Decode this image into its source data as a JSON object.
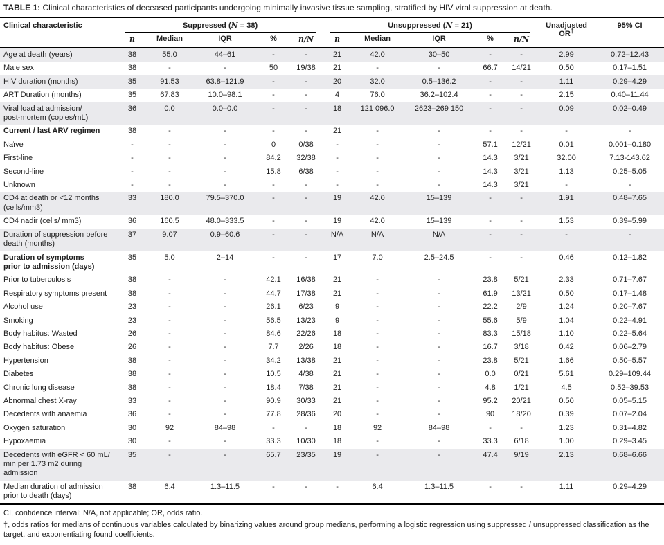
{
  "title": {
    "label": "TABLE 1:",
    "text": " Clinical characteristics of deceased participants undergoing minimally invasive tissue sampling, stratified by HIV viral suppression at death."
  },
  "colors": {
    "row_shade": "#eaeaed",
    "rule": "#000000",
    "text": "#1f1f1f"
  },
  "table": {
    "header": {
      "characteristic": "Clinical characteristic",
      "suppressed": {
        "prefix": "Suppressed (",
        "nvar": "N",
        "suffix": " = 38)"
      },
      "unsuppressed": {
        "prefix": "Unsuppressed (",
        "nvar": "N",
        "suffix": " = 21)"
      },
      "subcols": [
        "n",
        "Median",
        "IQR",
        "%",
        "n/N"
      ],
      "or": {
        "text": "Unadjusted OR",
        "sup": "†"
      },
      "ci": "95% CI"
    },
    "rows": [
      {
        "label": "Age at death (years)",
        "bold": false,
        "shaded": true,
        "cells": [
          "38",
          "55.0",
          "44–61",
          "-",
          "-",
          "21",
          "42.0",
          "30–50",
          "-",
          "-",
          "2.99",
          "0.72–12.43"
        ]
      },
      {
        "label": "Male sex",
        "bold": false,
        "shaded": false,
        "cells": [
          "38",
          "-",
          "-",
          "50",
          "19/38",
          "21",
          "-",
          "-",
          "66.7",
          "14/21",
          "0.50",
          "0.17–1.51"
        ]
      },
      {
        "label": "HIV duration (months)",
        "bold": false,
        "shaded": true,
        "cells": [
          "35",
          "91.53",
          "63.8–121.9",
          "-",
          "-",
          "20",
          "32.0",
          "0.5–136.2",
          "-",
          "-",
          "1.11",
          "0.29–4.29"
        ]
      },
      {
        "label": "ART Duration (months)",
        "bold": false,
        "shaded": false,
        "cells": [
          "35",
          "67.83",
          "10.0–98.1",
          "-",
          "-",
          "4",
          "76.0",
          "36.2–102.4",
          "-",
          "-",
          "2.15",
          "0.40–11.44"
        ]
      },
      {
        "label": "Viral load at admission/\npost-mortem (copies/mL)",
        "bold": false,
        "shaded": true,
        "cells": [
          "36",
          "0.0",
          "0.0–0.0",
          "-",
          "-",
          "18",
          "121 096.0",
          "2623–269 150",
          "-",
          "-",
          "0.09",
          "0.02–0.49"
        ]
      },
      {
        "label": "Current / last ARV regimen",
        "bold": true,
        "shaded": false,
        "cells": [
          "38",
          "-",
          "-",
          "-",
          "-",
          "21",
          "-",
          "-",
          "-",
          "-",
          "-",
          "-"
        ]
      },
      {
        "label": "Naïve",
        "bold": false,
        "shaded": false,
        "cells": [
          "-",
          "-",
          "-",
          "0",
          "0/38",
          "-",
          "-",
          "-",
          "57.1",
          "12/21",
          "0.01",
          "0.001–0.180"
        ]
      },
      {
        "label": "First-line",
        "bold": false,
        "shaded": false,
        "cells": [
          "-",
          "-",
          "-",
          "84.2",
          "32/38",
          "-",
          "-",
          "-",
          "14.3",
          "3/21",
          "32.00",
          "7.13-143.62"
        ]
      },
      {
        "label": "Second-line",
        "bold": false,
        "shaded": false,
        "cells": [
          "-",
          "-",
          "-",
          "15.8",
          "6/38",
          "-",
          "-",
          "-",
          "14.3",
          "3/21",
          "1.13",
          "0.25–5.05"
        ]
      },
      {
        "label": "Unknown",
        "bold": false,
        "shaded": false,
        "cells": [
          "-",
          "-",
          "-",
          "-",
          "-",
          "-",
          "-",
          "-",
          "14.3",
          "3/21",
          "-",
          "-"
        ]
      },
      {
        "label": "CD4 at death or <12 months\n(cells/mm3)",
        "bold": false,
        "shaded": true,
        "cells": [
          "33",
          "180.0",
          "79.5–370.0",
          "-",
          "-",
          "19",
          "42.0",
          "15–139",
          "-",
          "-",
          "1.91",
          "0.48–7.65"
        ]
      },
      {
        "label": "CD4 nadir (cells/ mm3)",
        "bold": false,
        "shaded": false,
        "cells": [
          "36",
          "160.5",
          "48.0–333.5",
          "-",
          "-",
          "19",
          "42.0",
          "15–139",
          "-",
          "-",
          "1.53",
          "0.39–5.99"
        ]
      },
      {
        "label": "Duration of suppression before\ndeath (months)",
        "bold": false,
        "shaded": true,
        "cells": [
          "37",
          "9.07",
          "0.9–60.6",
          "-",
          "-",
          "N/A",
          "N/A",
          "N/A",
          "-",
          "-",
          "-",
          "-"
        ]
      },
      {
        "label": "Duration of symptoms\nprior to admission (days)",
        "bold": true,
        "shaded": false,
        "cells": [
          "35",
          "5.0",
          "2–14",
          "-",
          "-",
          "17",
          "7.0",
          "2.5–24.5",
          "-",
          "-",
          "0.46",
          "0.12–1.82"
        ]
      },
      {
        "label": "Prior to tuberculosis",
        "bold": false,
        "shaded": false,
        "cells": [
          "38",
          "-",
          "-",
          "42.1",
          "16/38",
          "21",
          "-",
          "-",
          "23.8",
          "5/21",
          "2.33",
          "0.71–7.67"
        ]
      },
      {
        "label": "Respiratory symptoms present",
        "bold": false,
        "shaded": false,
        "cells": [
          "38",
          "-",
          "-",
          "44.7",
          "17/38",
          "21",
          "-",
          "-",
          "61.9",
          "13/21",
          "0.50",
          "0.17–1.48"
        ]
      },
      {
        "label": "Alcohol use",
        "bold": false,
        "shaded": false,
        "cells": [
          "23",
          "-",
          "-",
          "26.1",
          "6/23",
          "9",
          "-",
          "-",
          "22.2",
          "2/9",
          "1.24",
          "0.20–7.67"
        ]
      },
      {
        "label": "Smoking",
        "bold": false,
        "shaded": false,
        "cells": [
          "23",
          "-",
          "-",
          "56.5",
          "13/23",
          "9",
          "-",
          "-",
          "55.6",
          "5/9",
          "1.04",
          "0.22–4.91"
        ]
      },
      {
        "label": "Body habitus: Wasted",
        "bold": false,
        "shaded": false,
        "cells": [
          "26",
          "-",
          "-",
          "84.6",
          "22/26",
          "18",
          "-",
          "-",
          "83.3",
          "15/18",
          "1.10",
          "0.22–5.64"
        ]
      },
      {
        "label": "Body habitus: Obese",
        "bold": false,
        "shaded": false,
        "cells": [
          "26",
          "-",
          "-",
          "7.7",
          "2/26",
          "18",
          "-",
          "-",
          "16.7",
          "3/18",
          "0.42",
          "0.06–2.79"
        ]
      },
      {
        "label": "Hypertension",
        "bold": false,
        "shaded": false,
        "cells": [
          "38",
          "-",
          "-",
          "34.2",
          "13/38",
          "21",
          "-",
          "-",
          "23.8",
          "5/21",
          "1.66",
          "0.50–5.57"
        ]
      },
      {
        "label": "Diabetes",
        "bold": false,
        "shaded": false,
        "cells": [
          "38",
          "-",
          "-",
          "10.5",
          "4/38",
          "21",
          "-",
          "-",
          "0.0",
          "0/21",
          "5.61",
          "0.29–109.44"
        ]
      },
      {
        "label": "Chronic lung disease",
        "bold": false,
        "shaded": false,
        "cells": [
          "38",
          "-",
          "-",
          "18.4",
          "7/38",
          "21",
          "-",
          "-",
          "4.8",
          "1/21",
          "4.5",
          "0.52–39.53"
        ]
      },
      {
        "label": "Abnormal chest X-ray",
        "bold": false,
        "shaded": false,
        "cells": [
          "33",
          "-",
          "-",
          "90.9",
          "30/33",
          "21",
          "-",
          "-",
          "95.2",
          "20/21",
          "0.50",
          "0.05–5.15"
        ]
      },
      {
        "label": "Decedents with anaemia",
        "bold": false,
        "shaded": false,
        "cells": [
          "36",
          "-",
          "-",
          "77.8",
          "28/36",
          "20",
          "-",
          "-",
          "90",
          "18/20",
          "0.39",
          "0.07–2.04"
        ]
      },
      {
        "label": "Oxygen saturation",
        "bold": false,
        "shaded": false,
        "cells": [
          "30",
          "92",
          "84–98",
          "-",
          "-",
          "18",
          "92",
          "84–98",
          "-",
          "-",
          "1.23",
          "0.31–4.82"
        ]
      },
      {
        "label": "Hypoxaemia",
        "bold": false,
        "shaded": false,
        "cells": [
          "30",
          "-",
          "-",
          "33.3",
          "10/30",
          "18",
          "-",
          "-",
          "33.3",
          "6/18",
          "1.00",
          "0.29–3.45"
        ]
      },
      {
        "label": "Decedents with eGFR < 60  mL/\nmin per 1.73 m2 during\nadmission",
        "bold": false,
        "shaded": true,
        "cells": [
          "35",
          "-",
          "-",
          "65.7",
          "23/35",
          "19",
          "-",
          "-",
          "47.4",
          "9/19",
          "2.13",
          "0.68–6.66"
        ]
      },
      {
        "label": "Median duration of admission\nprior to death (days)",
        "bold": false,
        "shaded": false,
        "cells": [
          "38",
          "6.4",
          "1.3–11.5",
          "-",
          "-",
          "-",
          "6.4",
          "1.3–11.5",
          "-",
          "-",
          "1.11",
          "0.29–4.29"
        ]
      }
    ]
  },
  "footnotes": [
    "CI, confidence interval; N/A, not applicable; OR, odds ratio.",
    "†, odds ratios for medians of continuous variables calculated by binarizing values around group medians, performing a logistic regression using suppressed / unsuppressed classification as the target, and exponentiating found coefficients."
  ]
}
